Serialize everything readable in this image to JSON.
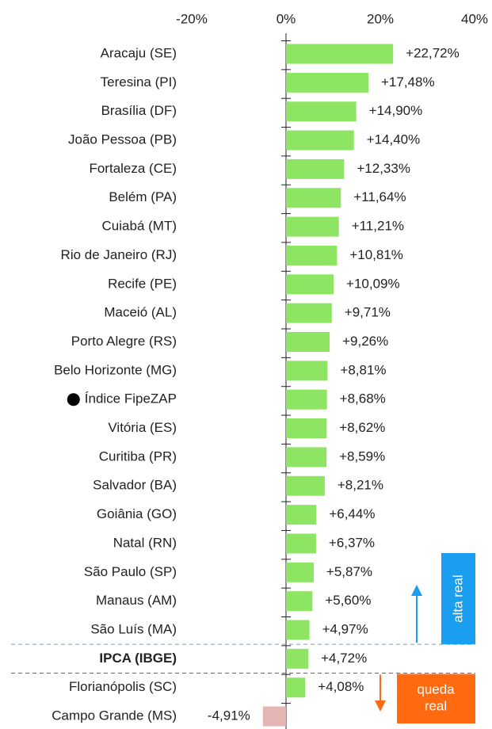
{
  "chart_data": {
    "type": "bar",
    "orientation": "horizontal",
    "categories": [
      "Aracaju (SE)",
      "Teresina (PI)",
      "Brasília (DF)",
      "João Pessoa (PB)",
      "Fortaleza (CE)",
      "Belém (PA)",
      "Cuiabá (MT)",
      "Rio de Janeiro (RJ)",
      "Recife (PE)",
      "Maceió (AL)",
      "Porto Alegre (RS)",
      "Belo Horizonte (MG)",
      "Índice FipeZAP",
      "Vitória (ES)",
      "Curitiba (PR)",
      "Salvador (BA)",
      "Goiânia (GO)",
      "Natal (RN)",
      "São Paulo (SP)",
      "Manaus (AM)",
      "São Luís (MA)",
      "IPCA (IBGE)",
      "Florianópolis (SC)",
      "Campo Grande (MS)"
    ],
    "values": [
      22.72,
      17.48,
      14.9,
      14.4,
      12.33,
      11.64,
      11.21,
      10.81,
      10.09,
      9.71,
      9.26,
      8.81,
      8.68,
      8.62,
      8.59,
      8.21,
      6.44,
      6.37,
      5.87,
      5.6,
      4.97,
      4.72,
      4.08,
      -4.91
    ],
    "value_labels": [
      "+22,72%",
      "+17,48%",
      "+14,90%",
      "+14,40%",
      "+12,33%",
      "+11,64%",
      "+11,21%",
      "+10,81%",
      "+10,09%",
      "+9,71%",
      "+9,26%",
      "+8,81%",
      "+8,68%",
      "+8,62%",
      "+8,59%",
      "+8,21%",
      "+6,44%",
      "+6,37%",
      "+5,87%",
      "+5,60%",
      "+4,97%",
      "+4,72%",
      "+4,08%",
      "-4,91%"
    ],
    "color": "#8ee563",
    "negative_color": "#e5b5b3",
    "xlim": [
      -20,
      40
    ],
    "xticks": [
      {
        "value": -20,
        "label": "-20%"
      },
      {
        "value": 0,
        "label": "0%"
      },
      {
        "value": 20,
        "label": "20%"
      },
      {
        "value": 40,
        "label": "40%"
      }
    ],
    "dot_index": 12,
    "bold_index": 21,
    "annotations": {
      "up": [
        "alta real"
      ],
      "down": [
        "queda",
        "real"
      ],
      "up_color": "#1a9ef0",
      "down_color": "#ff6a10"
    }
  }
}
